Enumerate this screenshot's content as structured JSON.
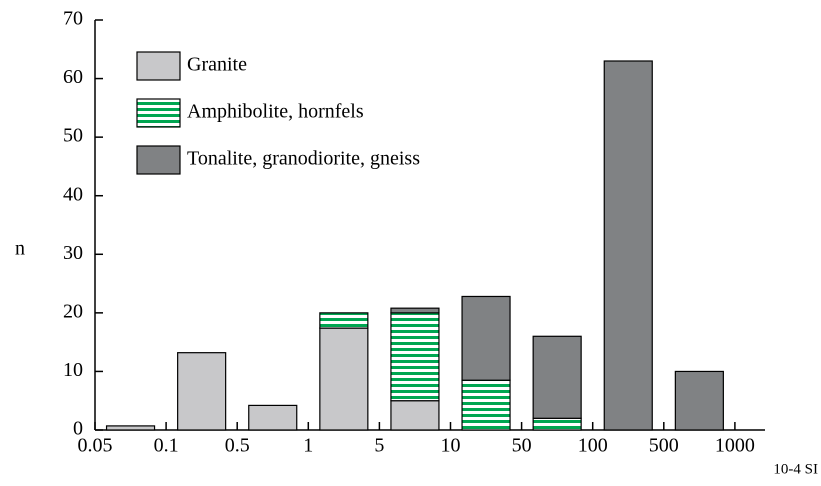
{
  "chart_data": {
    "type": "stacked-bar",
    "y_label": "n",
    "note": "10-4 SI",
    "bin_edges": [
      "0.05",
      "0.1",
      "0.5",
      "1",
      "5",
      "10",
      "50",
      "100",
      "500",
      "1000"
    ],
    "series": [
      {
        "name": "Granite",
        "color": "#c8c8ca",
        "values": [
          0.7,
          13.2,
          4.2,
          17.4,
          5,
          0,
          0,
          0,
          0
        ]
      },
      {
        "name": "Amphibolite, hornfels",
        "color": "#00a651",
        "pattern": "horizontal-stripes",
        "values": [
          0,
          0,
          0,
          2.6,
          15,
          8.5,
          2,
          0,
          0
        ]
      },
      {
        "name": "Tonalite, granodiorite, gneiss",
        "color": "#808284",
        "values": [
          0,
          0,
          0,
          0,
          0.8,
          14.3,
          14,
          63,
          10
        ]
      }
    ],
    "ylim": [
      0,
      70
    ],
    "yticks": [
      0,
      10,
      20,
      30,
      40,
      50,
      60,
      70
    ],
    "legend": "upper left"
  }
}
